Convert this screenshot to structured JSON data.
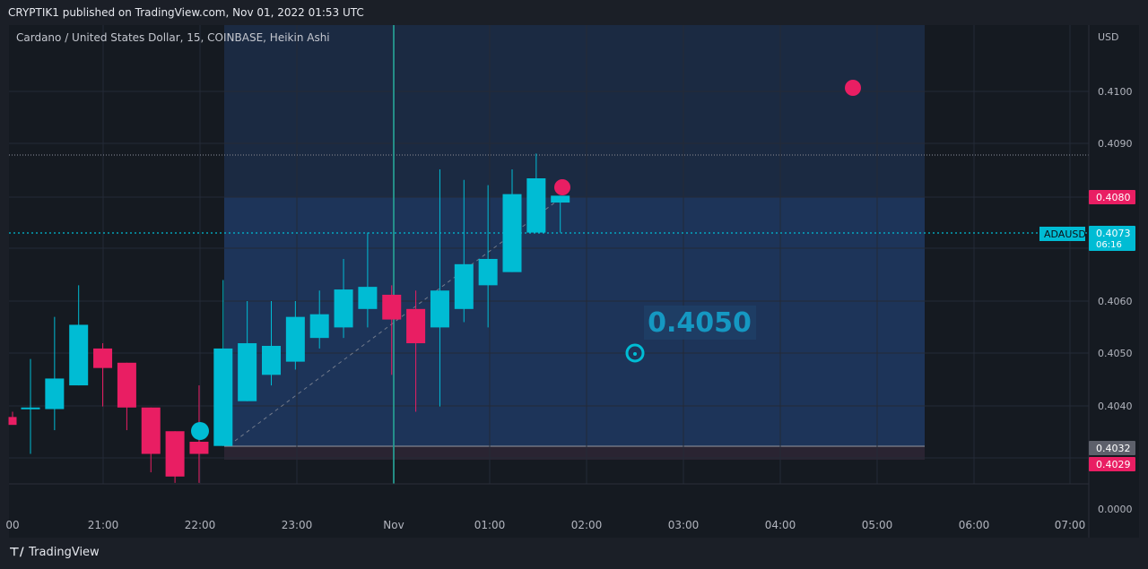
{
  "header": {
    "published": "CRYPTIK1 published on TradingView.com, Nov 01, 2022 01:53 UTC"
  },
  "footer": {
    "brand": "TradingView"
  },
  "chart_data": {
    "type": "candlestick",
    "style": "Heikin Ashi",
    "title": "Cardano / United States Dollar, 15, COINBASE, Heikin Ashi",
    "symbol": "ADAUSD",
    "currency_label": "USD",
    "y_axis_ticks": [
      "0.4100",
      "0.4090",
      "0.4080",
      "0.4060",
      "0.4050",
      "0.4040",
      "0.0000"
    ],
    "x_axis_ticks": [
      "00",
      "21:00",
      "22:00",
      "23:00",
      "Nov",
      "01:00",
      "02:00",
      "03:00",
      "04:00",
      "05:00",
      "06:00",
      "07:00"
    ],
    "candles": [
      {
        "o": 0.4038,
        "h": 0.4039,
        "l": 0.4037,
        "c": 0.40365,
        "dir": "down"
      },
      {
        "o": 0.40395,
        "h": 0.4049,
        "l": 0.4031,
        "c": 0.40398,
        "dir": "up"
      },
      {
        "o": 0.40395,
        "h": 0.4057,
        "l": 0.40355,
        "c": 0.40453,
        "dir": "up"
      },
      {
        "o": 0.4044,
        "h": 0.4063,
        "l": 0.4044,
        "c": 0.40555,
        "dir": "up"
      },
      {
        "o": 0.4051,
        "h": 0.4052,
        "l": 0.404,
        "c": 0.40473,
        "dir": "down"
      },
      {
        "o": 0.40483,
        "h": 0.40483,
        "l": 0.40355,
        "c": 0.40398,
        "dir": "down"
      },
      {
        "o": 0.40398,
        "h": 0.40398,
        "l": 0.40275,
        "c": 0.4031,
        "dir": "down"
      },
      {
        "o": 0.40353,
        "h": 0.40353,
        "l": 0.40255,
        "c": 0.40267,
        "dir": "down"
      },
      {
        "o": 0.40333,
        "h": 0.4044,
        "l": 0.40255,
        "c": 0.4031,
        "dir": "down"
      },
      {
        "o": 0.40325,
        "h": 0.4064,
        "l": 0.40325,
        "c": 0.4051,
        "dir": "up"
      },
      {
        "o": 0.4041,
        "h": 0.406,
        "l": 0.4041,
        "c": 0.4052,
        "dir": "up"
      },
      {
        "o": 0.4046,
        "h": 0.406,
        "l": 0.4044,
        "c": 0.40515,
        "dir": "up"
      },
      {
        "o": 0.40485,
        "h": 0.406,
        "l": 0.4047,
        "c": 0.4057,
        "dir": "up"
      },
      {
        "o": 0.4053,
        "h": 0.4062,
        "l": 0.4051,
        "c": 0.40575,
        "dir": "up"
      },
      {
        "o": 0.4055,
        "h": 0.4068,
        "l": 0.4053,
        "c": 0.40622,
        "dir": "up"
      },
      {
        "o": 0.40585,
        "h": 0.4073,
        "l": 0.4055,
        "c": 0.40627,
        "dir": "up"
      },
      {
        "o": 0.40612,
        "h": 0.4063,
        "l": 0.4046,
        "c": 0.40565,
        "dir": "down"
      },
      {
        "o": 0.40585,
        "h": 0.4062,
        "l": 0.4039,
        "c": 0.4052,
        "dir": "down"
      },
      {
        "o": 0.4055,
        "h": 0.4085,
        "l": 0.404,
        "c": 0.4062,
        "dir": "up"
      },
      {
        "o": 0.40585,
        "h": 0.4083,
        "l": 0.4056,
        "c": 0.4067,
        "dir": "up"
      },
      {
        "o": 0.4063,
        "h": 0.4082,
        "l": 0.4055,
        "c": 0.4068,
        "dir": "up"
      },
      {
        "o": 0.40655,
        "h": 0.4085,
        "l": 0.40655,
        "c": 0.40803,
        "dir": "up"
      },
      {
        "o": 0.4073,
        "h": 0.4088,
        "l": 0.4073,
        "c": 0.40833,
        "dir": "up"
      },
      {
        "o": 0.40787,
        "h": 0.408,
        "l": 0.4073,
        "c": 0.408,
        "dir": "up"
      }
    ],
    "price_labels": [
      {
        "text": "0.4080",
        "value": 0.408,
        "color": "#e91e63"
      },
      {
        "text": "0.4073",
        "value": 0.4073,
        "color": "#00bcd4",
        "sub": "06:16"
      },
      {
        "text": "0.4032",
        "value": 0.40322,
        "color": "#5d606b"
      },
      {
        "text": "0.4029",
        "value": 0.4029,
        "color": "#e91e63"
      }
    ],
    "annotation_text": "0.4050",
    "markers": [
      {
        "kind": "circle",
        "color": "#e91e63",
        "value": 0.4081
      },
      {
        "kind": "circle",
        "color": "#e91e63",
        "value": 0.41027
      },
      {
        "kind": "circle",
        "color": "#00bcd4",
        "value": 0.40355
      },
      {
        "kind": "ring",
        "color": "#00bcd4",
        "value": 0.405
      }
    ],
    "horizontal_lines": [
      {
        "value": 0.4073,
        "style": "dotted",
        "color": "#00bcd4"
      },
      {
        "value": 0.40885,
        "style": "dotted",
        "color": "#787b86"
      }
    ],
    "colors": {
      "up": "#00bcd4",
      "down": "#e91e63",
      "background": "#151a21",
      "range_box": "#1e3a5f",
      "vertical_marker": "#26a69a"
    }
  }
}
